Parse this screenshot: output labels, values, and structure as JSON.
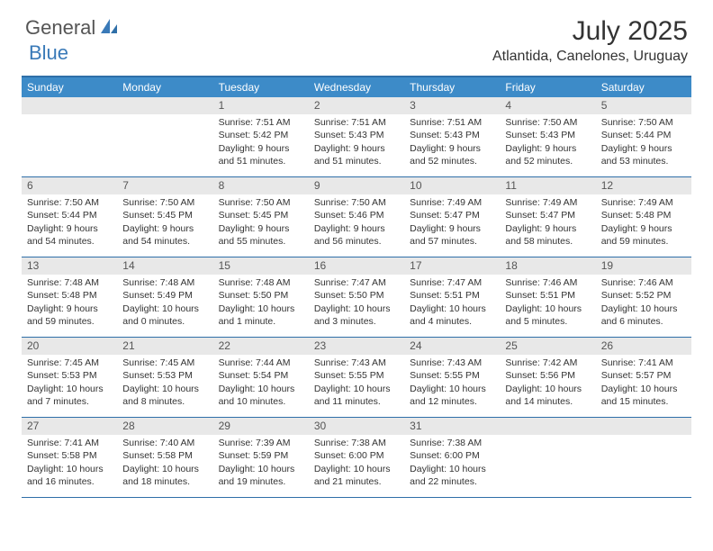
{
  "logo": {
    "text1": "General",
    "text2": "Blue"
  },
  "title": "July 2025",
  "location": "Atlantida, Canelones, Uruguay",
  "colors": {
    "header_bar": "#3d8bc8",
    "border": "#2f6fa8",
    "daynum_bg": "#e8e8e8",
    "logo_blue": "#3a7ab8"
  },
  "daynames": [
    "Sunday",
    "Monday",
    "Tuesday",
    "Wednesday",
    "Thursday",
    "Friday",
    "Saturday"
  ],
  "weeks": [
    [
      {
        "n": "",
        "sr": "",
        "ss": "",
        "dl": ""
      },
      {
        "n": "",
        "sr": "",
        "ss": "",
        "dl": ""
      },
      {
        "n": "1",
        "sr": "Sunrise: 7:51 AM",
        "ss": "Sunset: 5:42 PM",
        "dl": "Daylight: 9 hours and 51 minutes."
      },
      {
        "n": "2",
        "sr": "Sunrise: 7:51 AM",
        "ss": "Sunset: 5:43 PM",
        "dl": "Daylight: 9 hours and 51 minutes."
      },
      {
        "n": "3",
        "sr": "Sunrise: 7:51 AM",
        "ss": "Sunset: 5:43 PM",
        "dl": "Daylight: 9 hours and 52 minutes."
      },
      {
        "n": "4",
        "sr": "Sunrise: 7:50 AM",
        "ss": "Sunset: 5:43 PM",
        "dl": "Daylight: 9 hours and 52 minutes."
      },
      {
        "n": "5",
        "sr": "Sunrise: 7:50 AM",
        "ss": "Sunset: 5:44 PM",
        "dl": "Daylight: 9 hours and 53 minutes."
      }
    ],
    [
      {
        "n": "6",
        "sr": "Sunrise: 7:50 AM",
        "ss": "Sunset: 5:44 PM",
        "dl": "Daylight: 9 hours and 54 minutes."
      },
      {
        "n": "7",
        "sr": "Sunrise: 7:50 AM",
        "ss": "Sunset: 5:45 PM",
        "dl": "Daylight: 9 hours and 54 minutes."
      },
      {
        "n": "8",
        "sr": "Sunrise: 7:50 AM",
        "ss": "Sunset: 5:45 PM",
        "dl": "Daylight: 9 hours and 55 minutes."
      },
      {
        "n": "9",
        "sr": "Sunrise: 7:50 AM",
        "ss": "Sunset: 5:46 PM",
        "dl": "Daylight: 9 hours and 56 minutes."
      },
      {
        "n": "10",
        "sr": "Sunrise: 7:49 AM",
        "ss": "Sunset: 5:47 PM",
        "dl": "Daylight: 9 hours and 57 minutes."
      },
      {
        "n": "11",
        "sr": "Sunrise: 7:49 AM",
        "ss": "Sunset: 5:47 PM",
        "dl": "Daylight: 9 hours and 58 minutes."
      },
      {
        "n": "12",
        "sr": "Sunrise: 7:49 AM",
        "ss": "Sunset: 5:48 PM",
        "dl": "Daylight: 9 hours and 59 minutes."
      }
    ],
    [
      {
        "n": "13",
        "sr": "Sunrise: 7:48 AM",
        "ss": "Sunset: 5:48 PM",
        "dl": "Daylight: 9 hours and 59 minutes."
      },
      {
        "n": "14",
        "sr": "Sunrise: 7:48 AM",
        "ss": "Sunset: 5:49 PM",
        "dl": "Daylight: 10 hours and 0 minutes."
      },
      {
        "n": "15",
        "sr": "Sunrise: 7:48 AM",
        "ss": "Sunset: 5:50 PM",
        "dl": "Daylight: 10 hours and 1 minute."
      },
      {
        "n": "16",
        "sr": "Sunrise: 7:47 AM",
        "ss": "Sunset: 5:50 PM",
        "dl": "Daylight: 10 hours and 3 minutes."
      },
      {
        "n": "17",
        "sr": "Sunrise: 7:47 AM",
        "ss": "Sunset: 5:51 PM",
        "dl": "Daylight: 10 hours and 4 minutes."
      },
      {
        "n": "18",
        "sr": "Sunrise: 7:46 AM",
        "ss": "Sunset: 5:51 PM",
        "dl": "Daylight: 10 hours and 5 minutes."
      },
      {
        "n": "19",
        "sr": "Sunrise: 7:46 AM",
        "ss": "Sunset: 5:52 PM",
        "dl": "Daylight: 10 hours and 6 minutes."
      }
    ],
    [
      {
        "n": "20",
        "sr": "Sunrise: 7:45 AM",
        "ss": "Sunset: 5:53 PM",
        "dl": "Daylight: 10 hours and 7 minutes."
      },
      {
        "n": "21",
        "sr": "Sunrise: 7:45 AM",
        "ss": "Sunset: 5:53 PM",
        "dl": "Daylight: 10 hours and 8 minutes."
      },
      {
        "n": "22",
        "sr": "Sunrise: 7:44 AM",
        "ss": "Sunset: 5:54 PM",
        "dl": "Daylight: 10 hours and 10 minutes."
      },
      {
        "n": "23",
        "sr": "Sunrise: 7:43 AM",
        "ss": "Sunset: 5:55 PM",
        "dl": "Daylight: 10 hours and 11 minutes."
      },
      {
        "n": "24",
        "sr": "Sunrise: 7:43 AM",
        "ss": "Sunset: 5:55 PM",
        "dl": "Daylight: 10 hours and 12 minutes."
      },
      {
        "n": "25",
        "sr": "Sunrise: 7:42 AM",
        "ss": "Sunset: 5:56 PM",
        "dl": "Daylight: 10 hours and 14 minutes."
      },
      {
        "n": "26",
        "sr": "Sunrise: 7:41 AM",
        "ss": "Sunset: 5:57 PM",
        "dl": "Daylight: 10 hours and 15 minutes."
      }
    ],
    [
      {
        "n": "27",
        "sr": "Sunrise: 7:41 AM",
        "ss": "Sunset: 5:58 PM",
        "dl": "Daylight: 10 hours and 16 minutes."
      },
      {
        "n": "28",
        "sr": "Sunrise: 7:40 AM",
        "ss": "Sunset: 5:58 PM",
        "dl": "Daylight: 10 hours and 18 minutes."
      },
      {
        "n": "29",
        "sr": "Sunrise: 7:39 AM",
        "ss": "Sunset: 5:59 PM",
        "dl": "Daylight: 10 hours and 19 minutes."
      },
      {
        "n": "30",
        "sr": "Sunrise: 7:38 AM",
        "ss": "Sunset: 6:00 PM",
        "dl": "Daylight: 10 hours and 21 minutes."
      },
      {
        "n": "31",
        "sr": "Sunrise: 7:38 AM",
        "ss": "Sunset: 6:00 PM",
        "dl": "Daylight: 10 hours and 22 minutes."
      },
      {
        "n": "",
        "sr": "",
        "ss": "",
        "dl": ""
      },
      {
        "n": "",
        "sr": "",
        "ss": "",
        "dl": ""
      }
    ]
  ]
}
